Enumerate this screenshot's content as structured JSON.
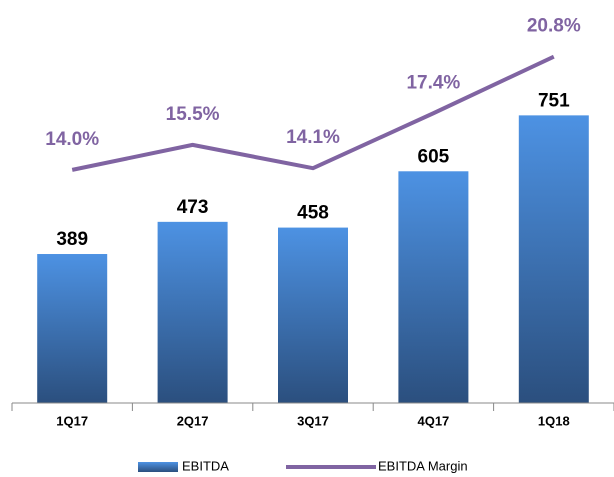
{
  "chart_data": {
    "type": "bar-line",
    "categories": [
      "1Q17",
      "2Q17",
      "3Q17",
      "4Q17",
      "1Q18"
    ],
    "series": [
      {
        "name": "EBITDA",
        "type": "bar",
        "color": "#3f7fcf",
        "values": [
          389,
          473,
          458,
          605,
          751
        ]
      },
      {
        "name": "EBITDA Margin",
        "type": "line",
        "axis": "y2",
        "color": "#8064a2",
        "values": [
          14.0,
          15.5,
          14.1,
          17.4,
          20.8
        ],
        "value_labels": [
          "14.0%",
          "15.5%",
          "14.1%",
          "17.4%",
          "20.8%"
        ]
      }
    ],
    "ylim": [
      0,
      1000
    ],
    "y2lim": [
      0,
      23
    ],
    "legend": "bottom"
  }
}
